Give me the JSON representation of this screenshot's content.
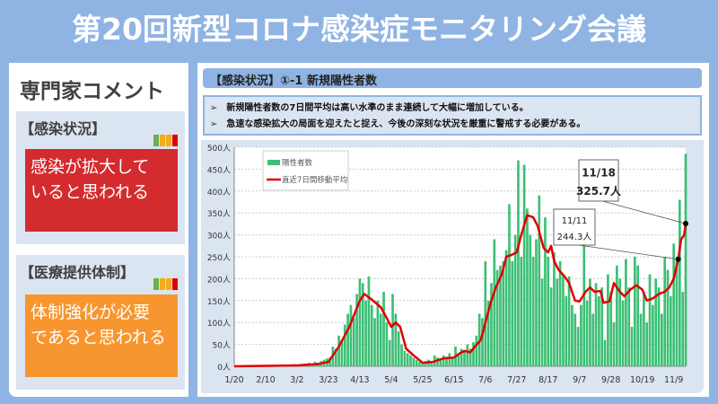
{
  "title": "第20回新型コロナ感染症モニタリング会議",
  "left": {
    "heading": "専門家コメント",
    "cards": [
      {
        "label": "【感染状況】",
        "text1": "感染が拡大して",
        "text2": "いると思われる",
        "color": "#d42b2f"
      },
      {
        "label": "【医療提供体制】",
        "text1": "体制強化が必要",
        "text2": "であると思われる",
        "color": "#f7962e"
      }
    ],
    "light_colors": [
      "#6ab04c",
      "#f0ad1e",
      "#f0ad1e",
      "#e00000"
    ]
  },
  "right": {
    "section_title": "【感染状況】①-1 新規陽性者数",
    "bullet": "➢",
    "notes": [
      "新規陽性者数の7日間平均は高い水準のまま連続して大幅に増加している。",
      "急速な感染拡大の局面を迎えたと捉え、今後の深刻な状況を厳重に警戒する必要がある。"
    ]
  },
  "chart_data": {
    "type": "bar",
    "ylim": [
      0,
      500
    ],
    "yticks": [
      "0人",
      "50人",
      "100人",
      "150人",
      "200人",
      "250人",
      "300人",
      "350人",
      "400人",
      "450人",
      "500人"
    ],
    "xticks": [
      "1/20",
      "2/10",
      "3/2",
      "3/23",
      "4/13",
      "5/4",
      "5/25",
      "6/15",
      "7/6",
      "7/27",
      "8/17",
      "9/7",
      "9/28",
      "10/19",
      "11/9"
    ],
    "xtick_days": [
      0,
      21,
      42,
      63,
      84,
      105,
      126,
      147,
      168,
      189,
      210,
      231,
      252,
      273,
      294
    ],
    "x_end_day": 302,
    "legend": [
      "陽性者数",
      "直近7日間移動平均"
    ],
    "bar_color": "#3dbf75",
    "line_color": "#e00000",
    "bars_every_2_days": [
      0,
      0,
      0,
      0,
      1,
      0,
      2,
      1,
      0,
      1,
      2,
      0,
      1,
      2,
      3,
      1,
      2,
      3,
      2,
      3,
      5,
      3,
      5,
      4,
      6,
      8,
      5,
      10,
      8,
      12,
      15,
      18,
      20,
      45,
      40,
      70,
      60,
      95,
      120,
      140,
      110,
      165,
      200,
      190,
      150,
      205,
      140,
      110,
      150,
      120,
      170,
      100,
      60,
      165,
      120,
      80,
      50,
      35,
      30,
      25,
      20,
      15,
      10,
      8,
      12,
      15,
      10,
      25,
      20,
      18,
      25,
      22,
      30,
      20,
      45,
      30,
      40,
      35,
      50,
      40,
      55,
      70,
      120,
      110,
      240,
      150,
      190,
      290,
      220,
      230,
      240,
      265,
      370,
      240,
      300,
      470,
      250,
      460,
      360,
      300,
      250,
      290,
      390,
      200,
      340,
      250,
      180,
      260,
      200,
      240,
      210,
      160,
      205,
      140,
      120,
      90,
      140,
      275,
      150,
      200,
      120,
      190,
      160,
      180,
      60,
      210,
      170,
      100,
      230,
      200,
      150,
      245,
      180,
      90,
      250,
      230,
      120,
      170,
      100,
      210,
      140,
      200,
      180,
      120,
      250,
      220,
      160,
      280,
      240,
      380,
      170,
      485
    ],
    "moving_average": [
      [
        0,
        0
      ],
      [
        42,
        2
      ],
      [
        56,
        5
      ],
      [
        63,
        10
      ],
      [
        70,
        45
      ],
      [
        77,
        90
      ],
      [
        84,
        150
      ],
      [
        87,
        165
      ],
      [
        91,
        155
      ],
      [
        98,
        135
      ],
      [
        102,
        110
      ],
      [
        105,
        90
      ],
      [
        108,
        100
      ],
      [
        111,
        90
      ],
      [
        115,
        40
      ],
      [
        120,
        25
      ],
      [
        126,
        8
      ],
      [
        133,
        10
      ],
      [
        140,
        18
      ],
      [
        147,
        20
      ],
      [
        151,
        30
      ],
      [
        154,
        35
      ],
      [
        158,
        32
      ],
      [
        161,
        45
      ],
      [
        165,
        60
      ],
      [
        168,
        100
      ],
      [
        172,
        150
      ],
      [
        175,
        180
      ],
      [
        179,
        210
      ],
      [
        182,
        250
      ],
      [
        186,
        255
      ],
      [
        189,
        260
      ],
      [
        192,
        300
      ],
      [
        196,
        345
      ],
      [
        200,
        340
      ],
      [
        203,
        320
      ],
      [
        207,
        270
      ],
      [
        210,
        260
      ],
      [
        212,
        275
      ],
      [
        214,
        240
      ],
      [
        217,
        220
      ],
      [
        221,
        205
      ],
      [
        224,
        190
      ],
      [
        228,
        150
      ],
      [
        231,
        148
      ],
      [
        235,
        170
      ],
      [
        238,
        180
      ],
      [
        241,
        170
      ],
      [
        245,
        172
      ],
      [
        247,
        145
      ],
      [
        251,
        148
      ],
      [
        254,
        190
      ],
      [
        258,
        170
      ],
      [
        261,
        160
      ],
      [
        265,
        175
      ],
      [
        269,
        185
      ],
      [
        273,
        175
      ],
      [
        276,
        150
      ],
      [
        280,
        155
      ],
      [
        284,
        165
      ],
      [
        288,
        170
      ],
      [
        291,
        180
      ],
      [
        294,
        200
      ],
      [
        297,
        244.3
      ],
      [
        299,
        290
      ],
      [
        301,
        300
      ],
      [
        302,
        325.7
      ]
    ],
    "annotations": [
      {
        "date": "11/11",
        "value_label": "244.3人",
        "day": 297,
        "value": 244.3
      },
      {
        "date": "11/18",
        "value_label": "325.7人",
        "day": 302,
        "value": 325.7
      }
    ]
  }
}
